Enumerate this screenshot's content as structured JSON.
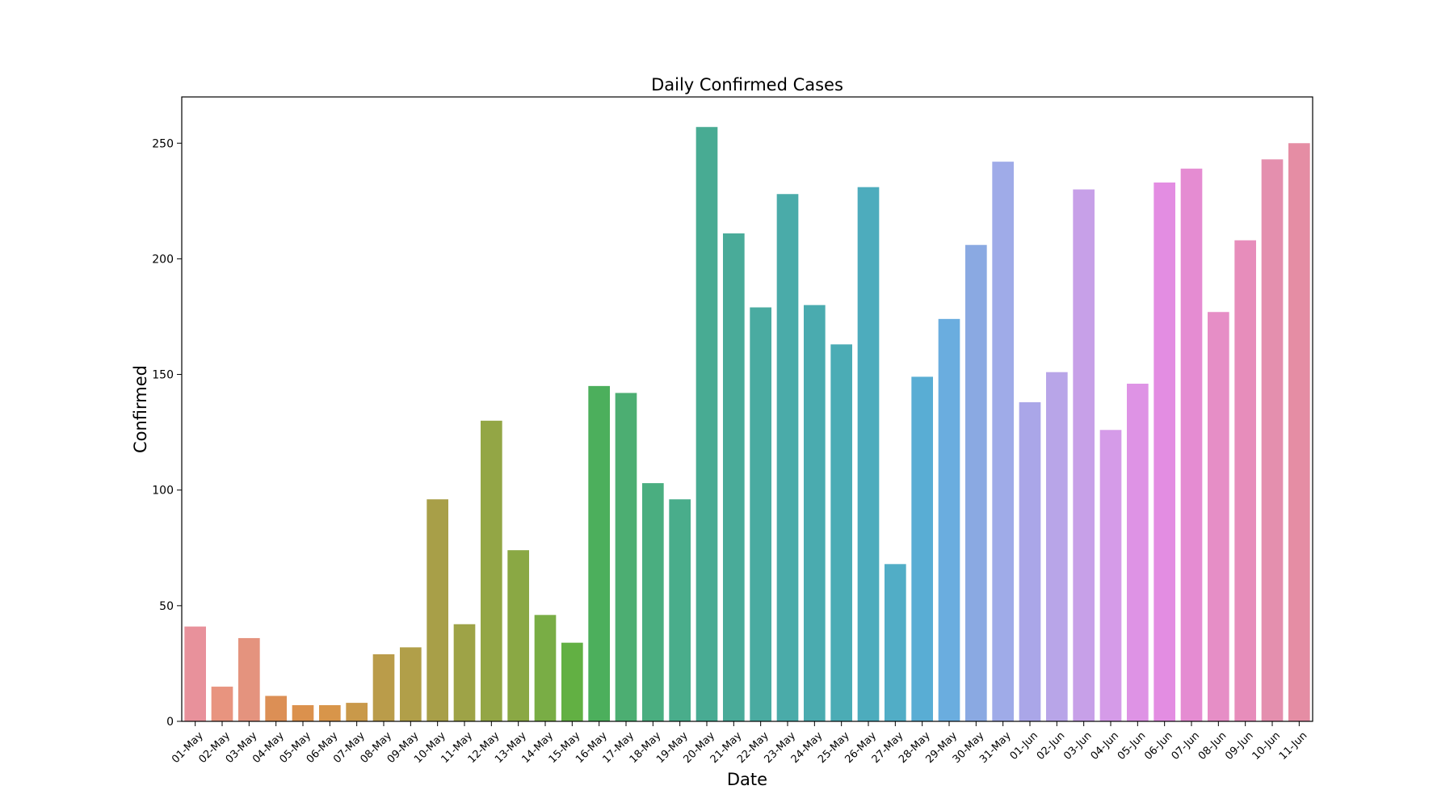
{
  "chart_data": {
    "type": "bar",
    "title": "Daily Confirmed Cases",
    "xlabel": "Date",
    "ylabel": "Confirmed",
    "ylim": [
      0,
      270
    ],
    "yticks": [
      0,
      50,
      100,
      150,
      200,
      250
    ],
    "grid": false,
    "categories": [
      "01-May",
      "02-May",
      "03-May",
      "04-May",
      "05-May",
      "06-May",
      "07-May",
      "08-May",
      "09-May",
      "10-May",
      "11-May",
      "12-May",
      "13-May",
      "14-May",
      "15-May",
      "16-May",
      "17-May",
      "18-May",
      "19-May",
      "20-May",
      "21-May",
      "22-May",
      "23-May",
      "24-May",
      "25-May",
      "26-May",
      "27-May",
      "28-May",
      "29-May",
      "30-May",
      "31-May",
      "01-Jun",
      "02-Jun",
      "03-Jun",
      "04-Jun",
      "05-Jun",
      "06-Jun",
      "07-Jun",
      "08-Jun",
      "09-Jun",
      "10-Jun",
      "11-Jun"
    ],
    "values": [
      41,
      15,
      36,
      11,
      7,
      7,
      8,
      29,
      32,
      96,
      42,
      130,
      74,
      46,
      34,
      145,
      142,
      103,
      96,
      257,
      211,
      179,
      228,
      180,
      163,
      231,
      68,
      149,
      174,
      206,
      242,
      138,
      151,
      230,
      126,
      146,
      233,
      239,
      177,
      208,
      243,
      250
    ],
    "colors": [
      "#e8919b",
      "#e8947f",
      "#e4937e",
      "#dc8f55",
      "#db914d",
      "#d8954a",
      "#c9994a",
      "#ba9c4a",
      "#b19f49",
      "#a89f48",
      "#9ea347",
      "#93a645",
      "#8aa844",
      "#79ad45",
      "#62b043",
      "#4caf5c",
      "#4cae72",
      "#4aae80",
      "#49ad8b",
      "#48ab93",
      "#49ab99",
      "#4aaba1",
      "#4aaba9",
      "#4aabaf",
      "#4bacb5",
      "#4dacbd",
      "#51adc6",
      "#59add4",
      "#6aaddf",
      "#8aa9e2",
      "#9fabe8",
      "#aaa6e8",
      "#b8a5e8",
      "#c7a0e8",
      "#d59be8",
      "#de93e5",
      "#e38de2",
      "#e58cd2",
      "#e68ec6",
      "#e78dbb",
      "#e48fae",
      "#e58da4"
    ]
  }
}
